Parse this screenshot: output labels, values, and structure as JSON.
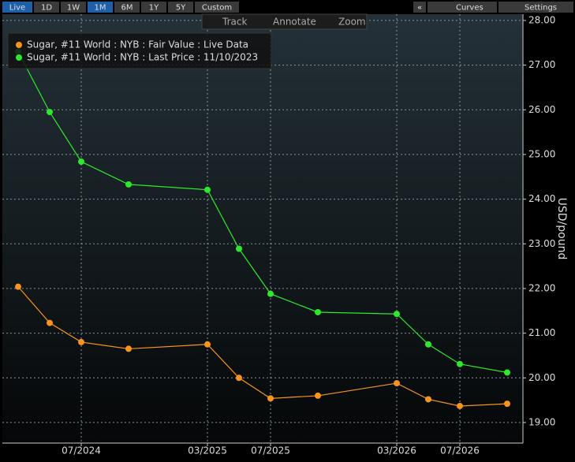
{
  "toolbar": {
    "ranges": [
      "Live",
      "1D",
      "1W",
      "1M",
      "6M",
      "1Y",
      "5Y",
      "Custom"
    ],
    "tools": [
      "Track",
      "Annotate",
      "Zoom"
    ],
    "right": [
      "«",
      "Curves",
      "Settings"
    ]
  },
  "chart_data": {
    "type": "line",
    "y_label": "USD/pound",
    "x": [
      "03/2024",
      "05/2024",
      "07/2024",
      "10/2024",
      "03/2025",
      "05/2025",
      "07/2025",
      "10/2025",
      "03/2026",
      "05/2026",
      "07/2026",
      "10/2026"
    ],
    "xlim": [
      "02/2024",
      "11/2026"
    ],
    "xticks": [
      "07/2024",
      "03/2025",
      "07/2025",
      "03/2026",
      "07/2026"
    ],
    "ylim": [
      18.54,
      28.14
    ],
    "yticks": [
      {
        "value": 19,
        "label": "19.00"
      },
      {
        "value": 20,
        "label": "20.00"
      },
      {
        "value": 21,
        "label": "21.00"
      },
      {
        "value": 22,
        "label": "22.00"
      },
      {
        "value": 23,
        "label": "23.00"
      },
      {
        "value": 24,
        "label": "24.00"
      },
      {
        "value": 25,
        "label": "25.00"
      },
      {
        "value": 26,
        "label": "26.00"
      },
      {
        "value": 27,
        "label": "27.00"
      },
      {
        "value": 28,
        "label": "28.00"
      }
    ],
    "grid": true,
    "series": [
      {
        "name": "Sugar, #11 World : NYB : Fair Value : Live Data",
        "color": "#f7941d",
        "values": [
          22.04,
          21.23,
          20.8,
          20.65,
          20.75,
          20.0,
          19.54,
          19.6,
          19.88,
          19.52,
          19.37,
          19.42
        ]
      },
      {
        "name": "Sugar, #11 World : NYB : Last Price : 11/10/2023",
        "color": "#2ee82e",
        "values": [
          27.3,
          25.95,
          24.84,
          24.33,
          24.21,
          22.89,
          21.88,
          21.47,
          21.43,
          20.75,
          20.31,
          20.12
        ]
      }
    ]
  }
}
